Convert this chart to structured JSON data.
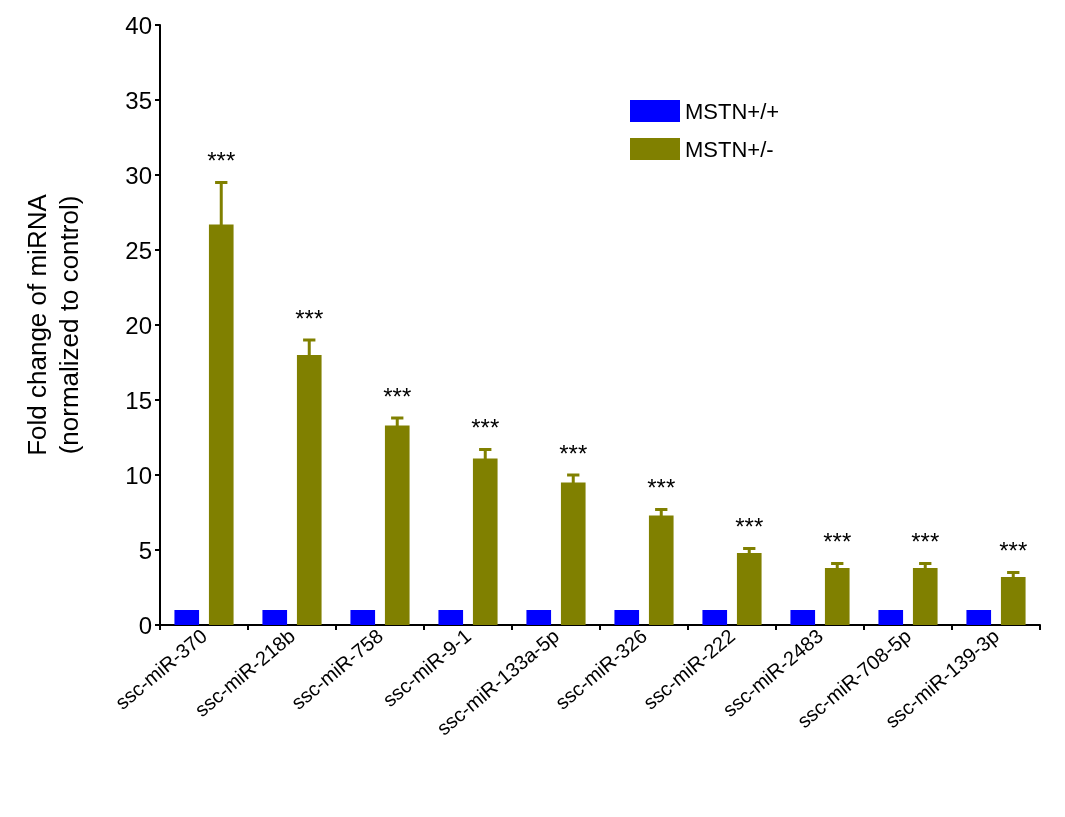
{
  "chart_data": {
    "type": "bar",
    "ylabel": "Fold change of miRNA\n(normalized to control)",
    "categories": [
      "ssc-miR-370",
      "ssc-miR-218b",
      "ssc-miR-758",
      "ssc-miR-9-1",
      "ssc-miR-133a-5p",
      "ssc-miR-326",
      "ssc-miR-222",
      "ssc-miR-2483",
      "ssc-miR-708-5p",
      "ssc-miR-139-3p"
    ],
    "series": [
      {
        "name": "MSTN+/+",
        "color": "#0000ff",
        "values": [
          1,
          1,
          1,
          1,
          1,
          1,
          1,
          1,
          1,
          1
        ]
      },
      {
        "name": "MSTN+/-",
        "color": "#808000",
        "values": [
          26.7,
          18.0,
          13.3,
          11.1,
          9.5,
          7.3,
          4.8,
          3.8,
          3.8,
          3.2
        ],
        "errors": [
          2.8,
          1.0,
          0.5,
          0.6,
          0.5,
          0.4,
          0.3,
          0.3,
          0.3,
          0.3
        ]
      }
    ],
    "ylim": [
      0,
      40
    ],
    "yticks": [
      0,
      5,
      10,
      15,
      20,
      25,
      30,
      35,
      40
    ],
    "grid": false,
    "legend": "top right",
    "annotations": [
      "***",
      "***",
      "***",
      "***",
      "***",
      "***",
      "***",
      "***",
      "***",
      "***"
    ]
  }
}
